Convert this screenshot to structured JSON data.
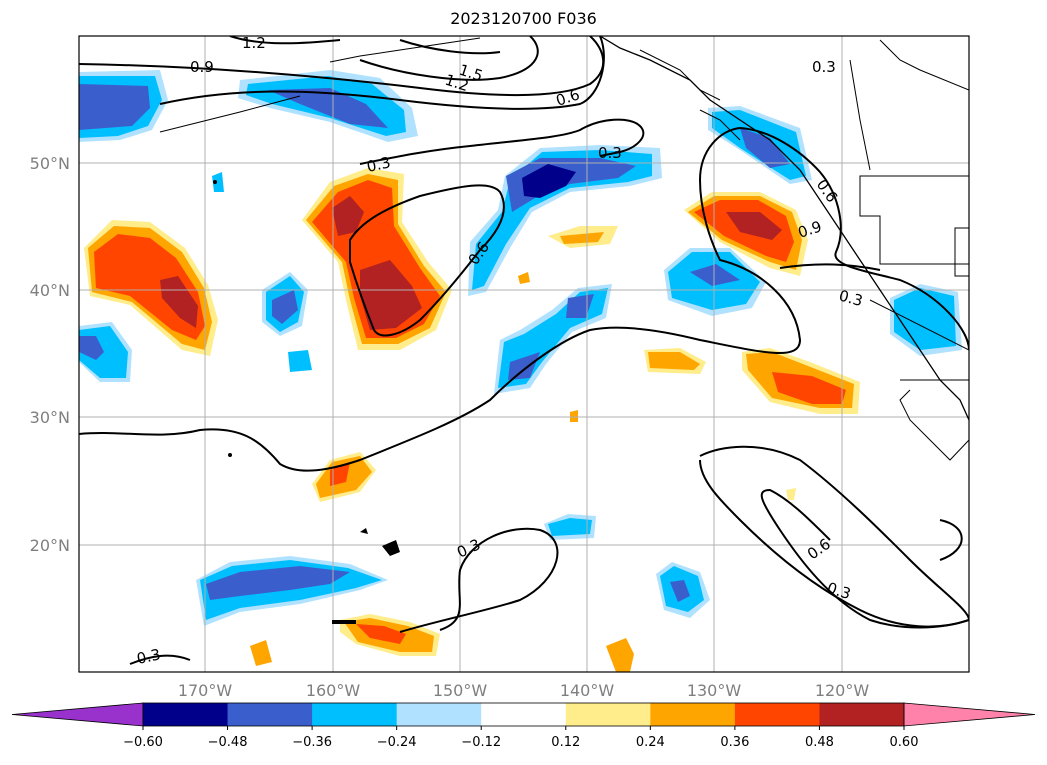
{
  "title": "2023120700 F036",
  "map": {
    "lat_labels": [
      "50°N",
      "40°N",
      "30°N",
      "20°N"
    ],
    "lon_labels": [
      "170°W",
      "160°W",
      "150°W",
      "140°W",
      "130°W",
      "120°W"
    ],
    "contour_labels": [
      "1.2",
      "0.9",
      "1.5",
      "1.2",
      "0.6",
      "0.3",
      "0.3",
      "0.6",
      "0.6",
      "0.9",
      "0.3",
      "0.3",
      "0.6",
      "0.3",
      "0.3",
      "0.3"
    ]
  },
  "colorbar": {
    "tick_labels": [
      "−0.60",
      "−0.48",
      "−0.36",
      "−0.24",
      "−0.12",
      "0.12",
      "0.24",
      "0.36",
      "0.48",
      "0.60"
    ],
    "colors": [
      "#9932cc",
      "#00008b",
      "#3a5fcd",
      "#00bfff",
      "#b0e2ff",
      "#ffffff",
      "#ffec8b",
      "#ffa500",
      "#ff4500",
      "#b22222",
      "#ff82ab"
    ]
  },
  "colors": {
    "dark_blue": "#00008b",
    "blue": "#3a5fcd",
    "cyan": "#00bfff",
    "light_blue": "#b0e2ff",
    "yellow": "#ffec8b",
    "orange": "#ffa500",
    "red_orange": "#ff4500",
    "dark_red": "#b22222"
  }
}
